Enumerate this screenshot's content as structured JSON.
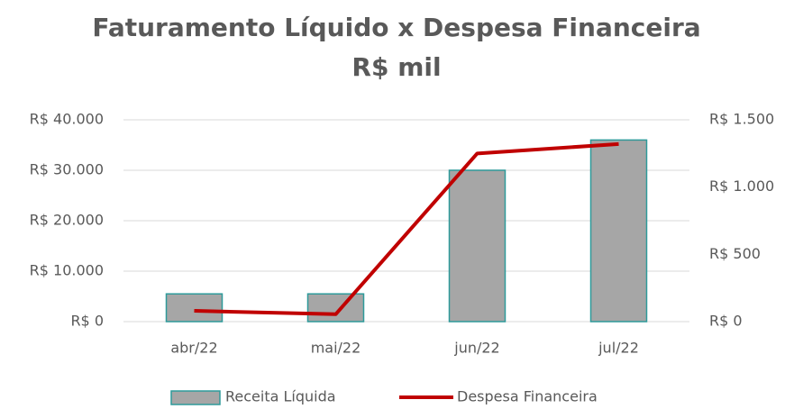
{
  "chart_data": {
    "type": "bar",
    "title": "Faturamento Líquido x Despesa Financeira",
    "subtitle": "R$ mil",
    "categories": [
      "abr/22",
      "mai/22",
      "jun/22",
      "jul/22"
    ],
    "series": [
      {
        "name": "Receita Líquida",
        "type": "bar",
        "color": "#a6a6a6",
        "edge_color": "#2e9a9a",
        "values": [
          5500,
          5500,
          30000,
          36000
        ]
      },
      {
        "name": "Despesa Financeira",
        "type": "line",
        "axis": "y2",
        "color": "#c00000",
        "values": [
          80,
          55,
          1250,
          1320
        ]
      }
    ],
    "ylim": [
      0,
      40000
    ],
    "yticks": [
      {
        "value": 0,
        "label": "R$ 0"
      },
      {
        "value": 10000,
        "label": "R$ 10.000"
      },
      {
        "value": 20000,
        "label": "R$ 20.000"
      },
      {
        "value": 30000,
        "label": "R$ 30.000"
      },
      {
        "value": 40000,
        "label": "R$ 40.000"
      }
    ],
    "y2lim": [
      0,
      1500
    ],
    "y2ticks": [
      {
        "value": 0,
        "label": "R$ 0"
      },
      {
        "value": 500,
        "label": "R$ 500"
      },
      {
        "value": 1000,
        "label": "R$ 1.000"
      },
      {
        "value": 1500,
        "label": "R$ 1.500"
      }
    ],
    "grid": true,
    "legend": "bottom"
  }
}
